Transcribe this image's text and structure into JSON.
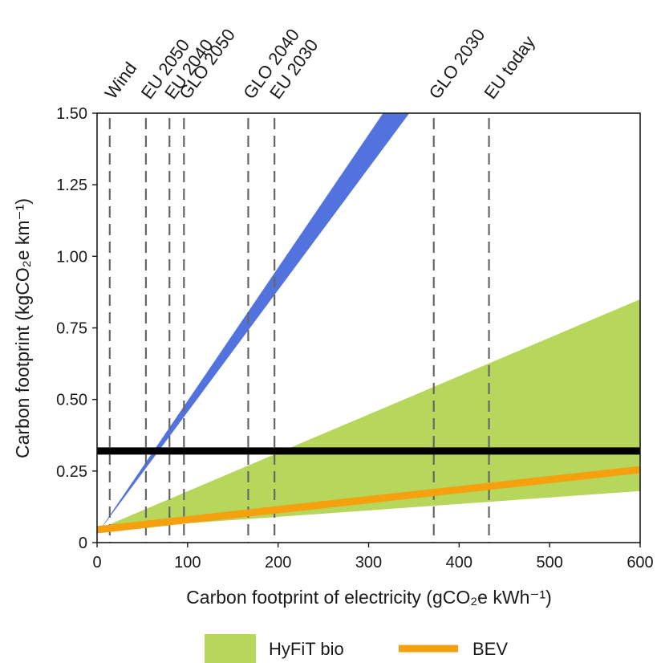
{
  "chart_data": {
    "type": "area",
    "xlabel": "Carbon footprint of electricity (gCO₂e kWh⁻¹)",
    "ylabel": "Carbon footprint (kgCO₂e km⁻¹)",
    "xlim": [
      0,
      600
    ],
    "ylim": [
      0,
      1.5
    ],
    "x_ticks": [
      0,
      100,
      200,
      300,
      400,
      500,
      600
    ],
    "x_tick_labels": [
      "0",
      "100",
      "200",
      "300",
      "400",
      "500",
      "600"
    ],
    "y_ticks": [
      0,
      0.25,
      0.5,
      0.75,
      1.0,
      1.25,
      1.5
    ],
    "y_tick_labels": [
      "0",
      "0.25",
      "0.50",
      "0.75",
      "1.00",
      "1.25",
      "1.50"
    ],
    "grid": false,
    "legend_position": "bottom",
    "reference_lines": [
      {
        "label": "Wind",
        "x": 14
      },
      {
        "label": "EU 2050",
        "x": 54
      },
      {
        "label": "EU 2040",
        "x": 80
      },
      {
        "label": "GLO 2050",
        "x": 96
      },
      {
        "label": "GLO 2040",
        "x": 167
      },
      {
        "label": "EU 2030",
        "x": 196
      },
      {
        "label": "GLO 2030",
        "x": 372
      },
      {
        "label": "EU today",
        "x": 433
      }
    ],
    "horizontal_line": {
      "y": 0.32,
      "color": "#000000"
    },
    "series": [
      {
        "name": "",
        "kind": "band",
        "color": "#5273dd",
        "x": [
          0,
          345
        ],
        "lower": [
          0.03,
          1.5
        ],
        "upper": [
          0.03,
          1.5
        ],
        "points_lower": [
          [
            0,
            0.03
          ],
          [
            345,
            1.5
          ]
        ],
        "points_upper": [
          [
            0,
            0.03
          ],
          [
            316,
            1.5
          ]
        ]
      },
      {
        "name": "HyFiT bio",
        "kind": "band",
        "color": "#b6d65c",
        "points_lower": [
          [
            0,
            0.045
          ],
          [
            600,
            0.18
          ]
        ],
        "points_upper": [
          [
            0,
            0.045
          ],
          [
            600,
            0.85
          ]
        ]
      },
      {
        "name": "BEV",
        "kind": "line",
        "color": "#f5a00f",
        "points": [
          [
            0,
            0.045
          ],
          [
            600,
            0.255
          ]
        ]
      }
    ]
  },
  "legend": {
    "items": [
      {
        "label": "HyFiT bio",
        "color": "#b6d65c",
        "kind": "patch"
      },
      {
        "label": "BEV",
        "color": "#f5a00f",
        "kind": "line"
      }
    ]
  }
}
